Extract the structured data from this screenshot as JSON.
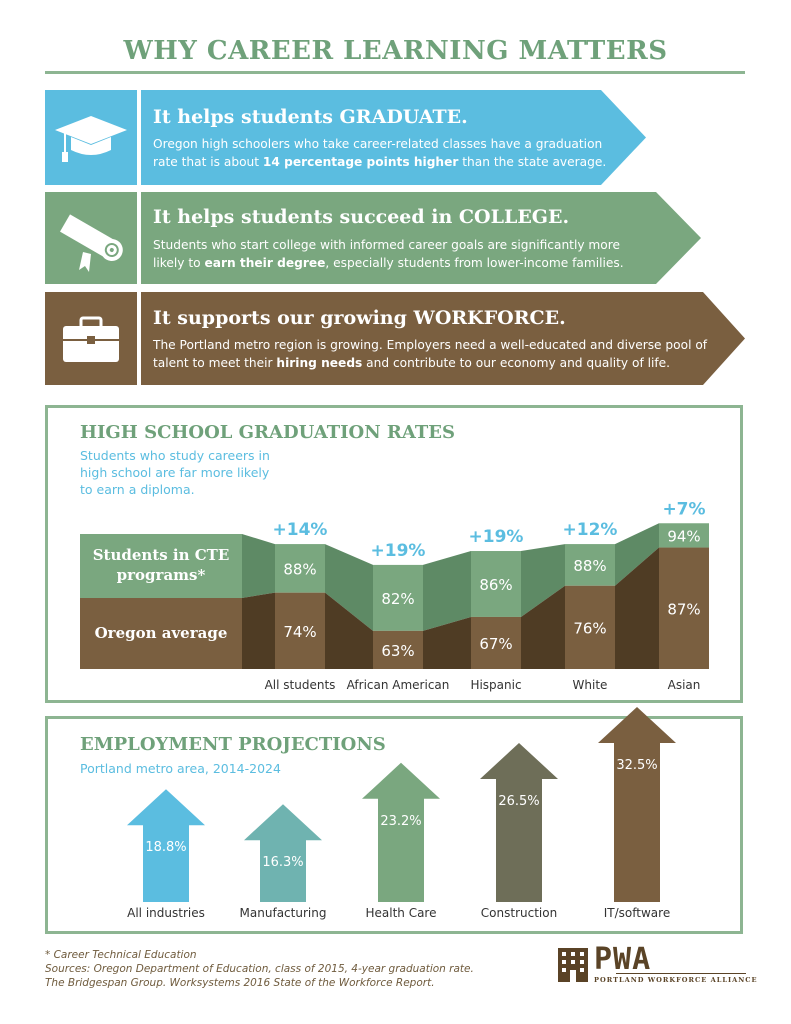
{
  "title": "WHY CAREER LEARNING MATTERS",
  "bands": [
    {
      "icon": "graduation-cap-icon",
      "heading": "It helps students GRADUATE.",
      "text_before": "Oregon high schoolers who take career-related classes have a graduation rate that is about ",
      "bold": "14 percentage points higher",
      "text_after": " than the state average.",
      "color": "#5bbde0"
    },
    {
      "icon": "diploma-scroll-icon",
      "heading": "It helps students succeed in COLLEGE.",
      "text_before": "Students who start college with informed career goals are significantly more likely to ",
      "bold": "earn their degree",
      "text_after": ", especially students from lower-income families.",
      "color": "#7aa77f"
    },
    {
      "icon": "briefcase-icon",
      "heading": "It supports our growing WORKFORCE.",
      "text_before": "The Portland metro region is growing. Employers need a well-educated and diverse pool of talent to meet their ",
      "bold": "hiring needs",
      "text_after": " and contribute to our economy and quality of life.",
      "color": "#7a5f40"
    }
  ],
  "graduation": {
    "title": "HIGH SCHOOL GRADUATION RATES",
    "subtitle": "Students who study careers in high school are far more likely to earn a diploma.",
    "legend_cte": "Students in CTE programs*",
    "legend_avg": "Oregon average"
  },
  "employment": {
    "title": "EMPLOYMENT PROJECTIONS",
    "subtitle": "Portland metro area, 2014-2024"
  },
  "footnotes": {
    "asterisk": "* Career Technical Education",
    "sources": "Sources: Oregon Department of Education, class of 2015, 4-year graduation rate.",
    "sources2": "The Bridgespan Group. Worksystems 2016 State of the Workforce Report."
  },
  "logo": {
    "name": "PWA",
    "tagline": "PORTLAND WORKFORCE ALLIANCE"
  },
  "colors": {
    "green": "#7aa77f",
    "dark_green": "#5e8a65",
    "brown": "#7a5f40",
    "dark_brown": "#4f3c24",
    "blue": "#5bbde0",
    "title_green": "#6fa17a"
  },
  "chart_data": [
    {
      "type": "area",
      "title": "HIGH SCHOOL GRADUATION RATES",
      "categories": [
        "All students",
        "African American",
        "Hispanic",
        "White",
        "Asian"
      ],
      "series": [
        {
          "name": "Students in CTE programs*",
          "values": [
            88,
            82,
            86,
            88,
            94
          ]
        },
        {
          "name": "Oregon average",
          "values": [
            74,
            63,
            67,
            76,
            87
          ]
        }
      ],
      "differences": [
        "+14%",
        "+19%",
        "+19%",
        "+12%",
        "+7%"
      ],
      "ylim": [
        0,
        100
      ]
    },
    {
      "type": "bar",
      "title": "EMPLOYMENT PROJECTIONS",
      "subtitle": "Portland metro area, 2014-2024",
      "categories": [
        "All industries",
        "Manufacturing",
        "Health Care",
        "Construction",
        "IT/software"
      ],
      "values": [
        18.8,
        16.3,
        23.2,
        26.5,
        32.5
      ],
      "labels": [
        "18.8%",
        "16.3%",
        "23.2%",
        "26.5%",
        "32.5%"
      ],
      "colors": [
        "#5bbde0",
        "#6fb3b0",
        "#7aa77f",
        "#6e6e58",
        "#7a5f40"
      ]
    }
  ]
}
